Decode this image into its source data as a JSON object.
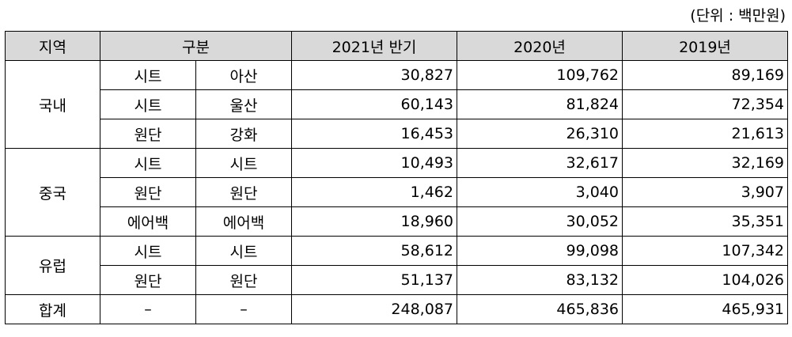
{
  "unit_label": "(단위 : 백만원)",
  "headers": {
    "region": "지역",
    "category": "구분",
    "col_2021h1": "2021년 반기",
    "col_2020": "2020년",
    "col_2019": "2019년"
  },
  "rows": [
    {
      "region": "국내",
      "cat1": "시트",
      "cat2": "아산",
      "v2021": "30,827",
      "v2020": "109,762",
      "v2019": "89,169"
    },
    {
      "region": "",
      "cat1": "시트",
      "cat2": "울산",
      "v2021": "60,143",
      "v2020": "81,824",
      "v2019": "72,354"
    },
    {
      "region": "",
      "cat1": "원단",
      "cat2": "강화",
      "v2021": "16,453",
      "v2020": "26,310",
      "v2019": "21,613"
    },
    {
      "region": "중국",
      "cat1": "시트",
      "cat2": "시트",
      "v2021": "10,493",
      "v2020": "32,617",
      "v2019": "32,169"
    },
    {
      "region": "",
      "cat1": "원단",
      "cat2": "원단",
      "v2021": "1,462",
      "v2020": "3,040",
      "v2019": "3,907"
    },
    {
      "region": "",
      "cat1": "에어백",
      "cat2": "에어백",
      "v2021": "18,960",
      "v2020": "30,052",
      "v2019": "35,351"
    },
    {
      "region": "유럽",
      "cat1": "시트",
      "cat2": "시트",
      "v2021": "58,612",
      "v2020": "99,098",
      "v2019": "107,342"
    },
    {
      "region": "",
      "cat1": "원단",
      "cat2": "원단",
      "v2021": "51,137",
      "v2020": "83,132",
      "v2019": "104,026"
    },
    {
      "region": "합계",
      "cat1": "–",
      "cat2": "–",
      "v2021": "248,087",
      "v2020": "465,836",
      "v2019": "465,931"
    }
  ]
}
